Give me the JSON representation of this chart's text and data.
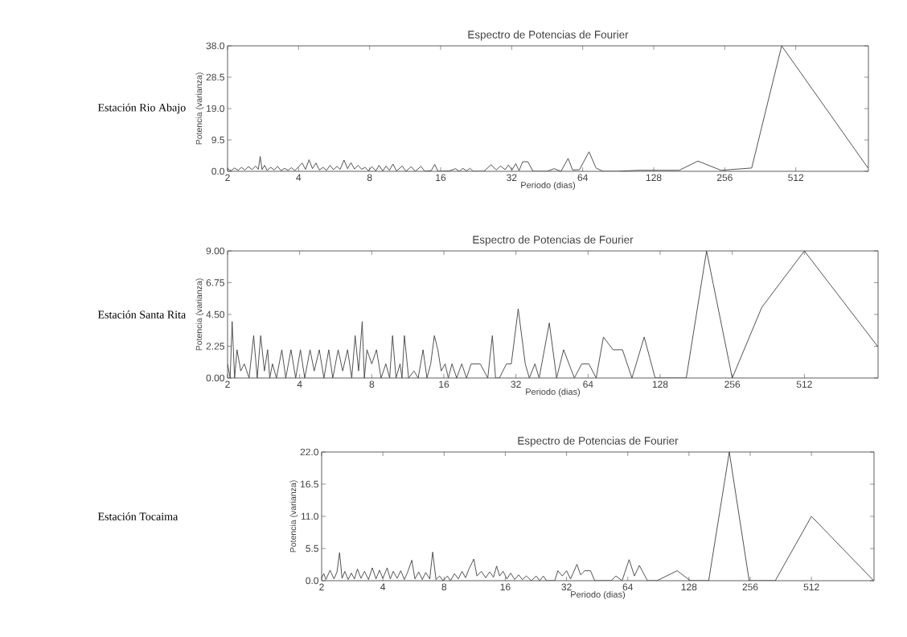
{
  "chart_data": [
    {
      "type": "line",
      "title": "Espectro de Potencias de Fourier",
      "xlabel": "Periodo (dias)",
      "ylabel": "Potencia (varianza)",
      "annotations": [
        "Estación Rio Abajo"
      ],
      "log": "x",
      "color": "#404040",
      "xlim": [
        2,
        1040
      ],
      "ylim": [
        0,
        38
      ],
      "xticks": [
        2,
        4,
        8,
        16,
        32,
        64,
        128,
        256,
        512
      ],
      "yticks": [
        {
          "value": 0,
          "label": "0.0"
        },
        {
          "value": 9.5,
          "label": "9.5"
        },
        {
          "value": 19,
          "label": "19.0"
        },
        {
          "value": 28.5,
          "label": "28.5"
        },
        {
          "value": 38,
          "label": "38.0"
        }
      ],
      "x": [
        2.0,
        2.07,
        2.14,
        2.22,
        2.29,
        2.37,
        2.45,
        2.54,
        2.63,
        2.7,
        2.75,
        2.8,
        2.87,
        2.94,
        3.05,
        3.15,
        3.26,
        3.37,
        3.49,
        3.61,
        3.73,
        3.86,
        4.0,
        4.14,
        4.28,
        4.43,
        4.58,
        4.74,
        4.9,
        5.08,
        5.25,
        5.44,
        5.62,
        5.82,
        6.0,
        6.23,
        6.45,
        6.67,
        6.9,
        7.15,
        7.4,
        7.65,
        7.9,
        8.19,
        8.5,
        8.77,
        9.1,
        9.39,
        9.7,
        10.05,
        10.4,
        11.0,
        11.4,
        12.0,
        12.5,
        13.2,
        13.7,
        14.6,
        15.1,
        15.6,
        17.4,
        18.5,
        19.2,
        19.9,
        20.6,
        21.3,
        22.0,
        24.4,
        26.2,
        27.5,
        28.7,
        30.0,
        31.0,
        32.1,
        33.3,
        34.4,
        35.6,
        37.5,
        39.4,
        45.2,
        48.4,
        51.8,
        55.5,
        58.0,
        62.0,
        68.1,
        72.9,
        78.0,
        89.5,
        109.8,
        164,
        197,
        247,
        333,
        446,
        1036
      ],
      "values": [
        0.8,
        0.2,
        1.0,
        0.3,
        1.2,
        0.4,
        1.4,
        0.5,
        1.6,
        0.6,
        4.5,
        0.5,
        1.8,
        0.3,
        1.2,
        0.4,
        1.5,
        0.2,
        0.9,
        0.3,
        1.1,
        0.2,
        1.4,
        2.5,
        0.6,
        3.5,
        0.8,
        2.5,
        0.4,
        1.2,
        0.3,
        1.8,
        0.5,
        1.5,
        0.6,
        3.4,
        0.8,
        2.6,
        0.7,
        1.8,
        0.6,
        1.2,
        0.2,
        1.4,
        0.1,
        1.8,
        0.1,
        1.6,
        0.3,
        2.2,
        0.1,
        1.6,
        0,
        1.4,
        0,
        1.5,
        0,
        0.2,
        2.1,
        0,
        0.1,
        0.8,
        0,
        0.9,
        0.1,
        0.9,
        0,
        0,
        2.0,
        0.4,
        1.6,
        0.5,
        1.9,
        0.4,
        2.3,
        0.2,
        2.9,
        2.9,
        0,
        0,
        0.8,
        0,
        3.9,
        0.4,
        0.5,
        5.9,
        1.0,
        0,
        0,
        0.3,
        0.3,
        3.1,
        0.3,
        1.0,
        38.0,
        1.0
      ]
    },
    {
      "type": "line",
      "title": "Espectro de Potencias de Fourier",
      "xlabel": "Periodo (dias)",
      "ylabel": "Potencia (varianza)",
      "annotations": [
        "Estación Santa Rita"
      ],
      "log": "x",
      "color": "#404040",
      "xlim": [
        2,
        1040
      ],
      "ylim": [
        0,
        9
      ],
      "xticks": [
        2,
        4,
        8,
        16,
        32,
        64,
        128,
        256,
        512
      ],
      "yticks": [
        {
          "value": 0,
          "label": "0.00"
        },
        2.25,
        {
          "value": 4.5,
          "label": "4.50"
        },
        6.75,
        {
          "value": 9,
          "label": "9.00"
        }
      ],
      "x": [
        2.0,
        2.05,
        2.09,
        2.14,
        2.19,
        2.27,
        2.35,
        2.46,
        2.57,
        2.66,
        2.75,
        2.85,
        2.94,
        3.0,
        3.08,
        3.2,
        3.37,
        3.5,
        3.68,
        3.85,
        4.03,
        4.2,
        4.42,
        4.6,
        4.83,
        5.05,
        5.29,
        5.5,
        5.79,
        6.05,
        6.34,
        6.6,
        6.82,
        7.05,
        7.3,
        7.45,
        7.64,
        8.0,
        8.37,
        8.75,
        9.16,
        9.5,
        9.77,
        10.1,
        10.5,
        10.7,
        10.95,
        11.4,
        12.0,
        12.5,
        13.1,
        13.6,
        14.1,
        14.6,
        15.1,
        15.6,
        16.2,
        16.7,
        17.3,
        18.1,
        19.0,
        19.9,
        20.8,
        22.7,
        24.4,
        25.5,
        26.3,
        27.3,
        29.2,
        30.6,
        32.7,
        35.0,
        36.4,
        38.4,
        40.0,
        44.1,
        47.3,
        50.6,
        56.1,
        60.2,
        64.5,
        69.2,
        74.2,
        81.4,
        89.1,
        97.6,
        109.8,
        122.0,
        164.5,
        200,
        256,
        340,
        512,
        1040
      ],
      "values": [
        1.0,
        0,
        4.0,
        0,
        2.0,
        0.5,
        1.0,
        0,
        3.0,
        0,
        3.0,
        0.5,
        2.0,
        0,
        1.0,
        0,
        2.0,
        0,
        2.0,
        0,
        2.0,
        0,
        2.0,
        0.5,
        2.0,
        0,
        2.0,
        0,
        2.0,
        0.5,
        2.0,
        0,
        3.0,
        0.5,
        4.0,
        0,
        2.0,
        1.0,
        2.0,
        0,
        1.0,
        0,
        3.0,
        0,
        1.0,
        0,
        3.0,
        0,
        0.5,
        0,
        2.0,
        0,
        1.0,
        3.0,
        2.0,
        0.5,
        1.0,
        0,
        1.0,
        0,
        1.0,
        0,
        1.0,
        1.0,
        0,
        3.0,
        0,
        0,
        1.0,
        1.0,
        4.9,
        1.0,
        0,
        1.0,
        0,
        3.9,
        0,
        2.0,
        0,
        1.0,
        1.0,
        0,
        2.9,
        2.0,
        2.0,
        0,
        2.9,
        0,
        0,
        9.0,
        0,
        5.0,
        9.0,
        2.2
      ]
    },
    {
      "type": "line",
      "title": "Espectro de Potencias de Fourier",
      "xlabel": "Periodo (dias)",
      "ylabel": "Potencia (varianza)",
      "annotations": [
        "Estación Tocaima"
      ],
      "log": "x",
      "color": "#404040",
      "xlim": [
        2,
        1040
      ],
      "ylim": [
        0,
        22
      ],
      "xticks": [
        2,
        4,
        8,
        16,
        32,
        64,
        128,
        256,
        512
      ],
      "yticks": [
        {
          "value": 0,
          "label": "0.0"
        },
        5.5,
        {
          "value": 11,
          "label": "11.0"
        },
        16.5,
        {
          "value": 22,
          "label": "22.0"
        }
      ],
      "x": [
        2.0,
        2.05,
        2.1,
        2.2,
        2.3,
        2.38,
        2.45,
        2.52,
        2.6,
        2.7,
        2.8,
        2.9,
        3.0,
        3.12,
        3.25,
        3.4,
        3.55,
        3.7,
        3.85,
        4.0,
        4.2,
        4.35,
        4.5,
        4.7,
        4.9,
        5.1,
        5.3,
        5.55,
        5.75,
        6.0,
        6.25,
        6.5,
        6.8,
        7.03,
        7.3,
        7.6,
        7.9,
        8.3,
        8.6,
        9.0,
        9.4,
        9.8,
        10.2,
        10.6,
        11.2,
        11.6,
        12.2,
        12.8,
        13.4,
        14.0,
        14.5,
        15.0,
        15.6,
        16.3,
        17.0,
        17.8,
        18.6,
        19.4,
        20.3,
        21.5,
        22.7,
        23.6,
        24.6,
        25.5,
        28,
        29,
        30.5,
        32,
        33.5,
        36.0,
        37.5,
        39.3,
        42,
        44,
        53,
        56,
        60,
        65,
        69,
        73,
        80,
        89,
        112,
        130,
        160,
        202,
        253,
        340,
        512,
        1036
      ],
      "values": [
        0.5,
        1.2,
        0.2,
        1.8,
        0.3,
        1.5,
        4.8,
        0.4,
        1.6,
        0.2,
        1.3,
        0.3,
        2.0,
        0.4,
        1.6,
        0.2,
        2.2,
        0.3,
        1.8,
        0.4,
        2.2,
        0.3,
        1.6,
        0.4,
        1.7,
        0.2,
        1.5,
        3.5,
        0.3,
        1.5,
        0.2,
        1.4,
        0.3,
        4.9,
        0.2,
        0.8,
        0,
        0.8,
        0,
        1.2,
        0.3,
        1.6,
        0.5,
        2.0,
        3.7,
        0.8,
        1.6,
        0.5,
        1.5,
        0.6,
        2.5,
        0.8,
        1.6,
        0.3,
        1.3,
        0.2,
        1.0,
        0.2,
        0.8,
        0,
        0.8,
        0,
        0.8,
        0,
        0,
        1.7,
        0.8,
        1.7,
        0.3,
        2.8,
        1.0,
        1.7,
        1.7,
        0,
        0,
        0.8,
        0,
        3.6,
        0.8,
        2.6,
        0,
        0,
        1.7,
        0,
        0,
        22.0,
        0,
        0,
        11.0,
        0
      ]
    }
  ]
}
